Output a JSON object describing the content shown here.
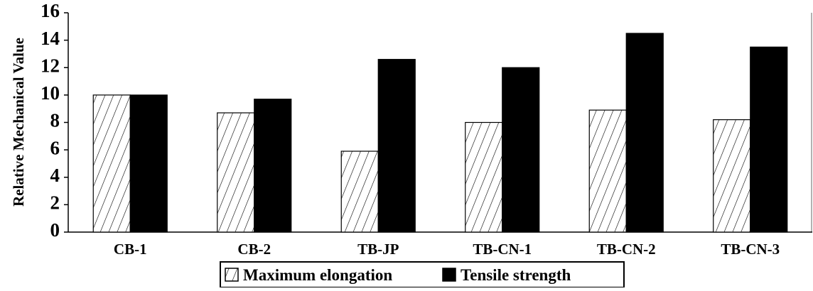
{
  "chart_data": {
    "type": "bar",
    "title": "",
    "xlabel": "",
    "ylabel": "Relative Mechanical Value",
    "ylim": [
      0,
      16
    ],
    "yticks": [
      0,
      2,
      4,
      6,
      8,
      10,
      12,
      14,
      16
    ],
    "categories": [
      "CB-1",
      "CB-2",
      "TB-JP",
      "TB-CN-1",
      "TB-CN-2",
      "TB-CN-3"
    ],
    "series": [
      {
        "name": "Maximum elongation",
        "values": [
          10.0,
          8.7,
          5.9,
          8.0,
          8.9,
          8.2
        ],
        "fill": "hatch",
        "color": "#000000"
      },
      {
        "name": "Tensile strength",
        "values": [
          10.0,
          9.7,
          12.6,
          12.0,
          14.5,
          13.5
        ],
        "fill": "solid",
        "color": "#000000"
      }
    ],
    "grid": false,
    "legend": "bottom"
  }
}
